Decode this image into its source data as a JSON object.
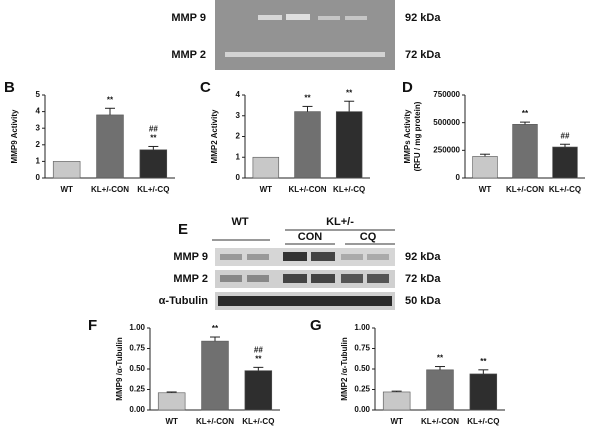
{
  "zymogram": {
    "labels": [
      "MMP 9",
      "MMP 2"
    ],
    "sizes": [
      "92 kDa",
      "72 kDa"
    ]
  },
  "western": {
    "panel": "E",
    "groups": [
      "WT",
      "KL+/-"
    ],
    "subgroups": [
      "CON",
      "CQ"
    ],
    "labels": [
      "MMP 9",
      "MMP 2",
      "α-Tubulin"
    ],
    "sizes": [
      "92 kDa",
      "72 kDa",
      "50 kDa"
    ]
  },
  "chart_data": [
    {
      "type": "bar",
      "panel": "B",
      "ylabel": [
        "MMP9 Activity"
      ],
      "categories": [
        "WT",
        "KL+/-CON",
        "KL+/-CQ"
      ],
      "values": [
        1,
        3.8,
        1.7
      ],
      "errors": [
        0,
        0.4,
        0.2
      ],
      "colors": [
        "#c8c8c8",
        "#707070",
        "#2e2e2e"
      ],
      "annotations": [
        null,
        [
          "**"
        ],
        [
          "##",
          "**"
        ]
      ],
      "ylim": [
        0,
        5
      ],
      "yticks": [
        0,
        1,
        2,
        3,
        4,
        5
      ]
    },
    {
      "type": "bar",
      "panel": "C",
      "ylabel": [
        "MMP2 Activity"
      ],
      "categories": [
        "WT",
        "KL+/-CON",
        "KL+/-CQ"
      ],
      "values": [
        1,
        3.2,
        3.2
      ],
      "errors": [
        0,
        0.25,
        0.5
      ],
      "colors": [
        "#c8c8c8",
        "#707070",
        "#2e2e2e"
      ],
      "annotations": [
        null,
        [
          "**"
        ],
        [
          "**"
        ]
      ],
      "ylim": [
        0,
        4
      ],
      "yticks": [
        0,
        1,
        2,
        3,
        4
      ]
    },
    {
      "type": "bar",
      "panel": "D",
      "ylabel": [
        "MMPs Activity",
        "(RFU / mg protein)"
      ],
      "categories": [
        "WT",
        "KL+/-CON",
        "KL+/-CQ"
      ],
      "values": [
        195000,
        485000,
        280000
      ],
      "errors": [
        20000,
        20000,
        25000
      ],
      "colors": [
        "#c8c8c8",
        "#707070",
        "#2e2e2e"
      ],
      "annotations": [
        null,
        [
          "**"
        ],
        [
          "##"
        ]
      ],
      "ylim": [
        0,
        750000
      ],
      "yticks": [
        0,
        250000,
        500000,
        750000
      ]
    },
    {
      "type": "bar",
      "panel": "F",
      "ylabel": [
        "MMP9 /α-Tubulin"
      ],
      "categories": [
        "WT",
        "KL+/-CON",
        "KL+/-CQ"
      ],
      "values": [
        0.21,
        0.84,
        0.48
      ],
      "errors": [
        0.01,
        0.05,
        0.04
      ],
      "colors": [
        "#c8c8c8",
        "#707070",
        "#2e2e2e"
      ],
      "annotations": [
        null,
        [
          "**"
        ],
        [
          "##",
          "**"
        ]
      ],
      "ylim": [
        0,
        1
      ],
      "yticks": [
        {
          "value": 0,
          "label": "0.00"
        },
        {
          "value": 0.25,
          "label": "0.25"
        },
        {
          "value": 0.5,
          "label": "0.50"
        },
        {
          "value": 0.75,
          "label": "0.75"
        },
        {
          "value": 1,
          "label": "1.00"
        }
      ]
    },
    {
      "type": "bar",
      "panel": "G",
      "ylabel": [
        "MMP2 /α-Tubulin"
      ],
      "categories": [
        "WT",
        "KL+/-CON",
        "KL+/-CQ"
      ],
      "values": [
        0.22,
        0.49,
        0.44
      ],
      "errors": [
        0.01,
        0.04,
        0.05
      ],
      "colors": [
        "#c8c8c8",
        "#707070",
        "#2e2e2e"
      ],
      "annotations": [
        null,
        [
          "**"
        ],
        [
          "**"
        ]
      ],
      "ylim": [
        0,
        1
      ],
      "yticks": [
        {
          "value": 0,
          "label": "0.00"
        },
        {
          "value": 0.25,
          "label": "0.25"
        },
        {
          "value": 0.5,
          "label": "0.50"
        },
        {
          "value": 0.75,
          "label": "0.75"
        },
        {
          "value": 1,
          "label": "1.00"
        }
      ]
    }
  ]
}
